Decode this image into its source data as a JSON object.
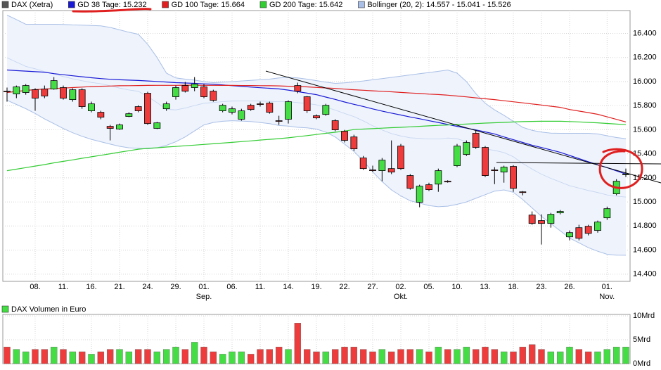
{
  "chart_data": [
    {
      "type": "candlestick",
      "name": "DAX (Xetra)",
      "color": "#000000",
      "legend_color": "#555555",
      "up_color": "#44dd44",
      "down_color": "#ee3b3b",
      "categories": [
        null,
        null,
        null,
        "08.",
        null,
        null,
        "11.",
        null,
        null,
        "16.",
        null,
        null,
        "21.",
        null,
        null,
        "24.",
        null,
        null,
        "29.",
        null,
        null,
        "01.",
        null,
        null,
        "06.",
        null,
        null,
        "11.",
        null,
        null,
        "14.",
        null,
        null,
        "19.",
        null,
        null,
        "22.",
        null,
        null,
        "27.",
        null,
        null,
        "02.",
        null,
        null,
        "05.",
        null,
        null,
        "10.",
        null,
        null,
        "13.",
        null,
        null,
        "18.",
        null,
        null,
        "23.",
        null,
        null,
        "26.",
        null,
        null,
        null,
        "01.",
        null,
        null
      ],
      "month_labels": [
        null,
        null,
        null,
        null,
        null,
        null,
        null,
        null,
        null,
        null,
        null,
        null,
        null,
        null,
        null,
        null,
        null,
        null,
        null,
        null,
        null,
        "Sep.",
        null,
        null,
        null,
        null,
        null,
        null,
        null,
        null,
        null,
        null,
        null,
        null,
        null,
        null,
        null,
        null,
        null,
        null,
        null,
        null,
        "Okt.",
        null,
        null,
        null,
        null,
        null,
        null,
        null,
        null,
        null,
        null,
        null,
        null,
        null,
        null,
        null,
        null,
        null,
        null,
        null,
        null,
        null,
        "Nov.",
        null,
        null
      ],
      "open": [
        15920,
        15897,
        15909,
        15932,
        15938,
        15938,
        15950,
        15850,
        15932,
        15757,
        15745,
        15628,
        15605,
        15710,
        15792,
        15903,
        15611,
        15774,
        15874,
        15967,
        15950,
        15956,
        15920,
        15757,
        15745,
        15687,
        15803,
        15815,
        15821,
        15675,
        15687,
        15967,
        15874,
        15716,
        15727,
        15675,
        15587,
        15540,
        15365,
        15266,
        15260,
        15277,
        15464,
        15219,
        14997,
        15143,
        15148,
        15172,
        15301,
        15394,
        15570,
        15453,
        15266,
        15248,
        15295,
        15084,
        14891,
        14845,
        14821,
        14909,
        14710,
        14786,
        14798,
        14763,
        14868,
        15067,
        15231
      ],
      "high": [
        15950,
        15967,
        15979,
        15944,
        15967,
        16037,
        15967,
        15944,
        15944,
        15833,
        15757,
        15640,
        15651,
        15745,
        15803,
        15915,
        15665,
        15833,
        15967,
        15997,
        16037,
        15979,
        15932,
        15815,
        15792,
        15774,
        15815,
        15833,
        15833,
        15716,
        15844,
        15991,
        15880,
        15727,
        15815,
        15687,
        15599,
        15558,
        15382,
        15301,
        15365,
        15511,
        15482,
        15231,
        15143,
        15160,
        15277,
        15180,
        15482,
        15511,
        15599,
        15464,
        15289,
        15301,
        15306,
        15090,
        14921,
        14897,
        14909,
        14933,
        14763,
        14810,
        14810,
        14845,
        14961,
        15189,
        15277
      ],
      "low": [
        15833,
        15862,
        15891,
        15757,
        15862,
        15932,
        15850,
        15833,
        15774,
        15745,
        15687,
        15511,
        15599,
        15704,
        15745,
        15640,
        15605,
        15757,
        15850,
        15909,
        15920,
        15862,
        15833,
        15745,
        15727,
        15675,
        15757,
        15792,
        15733,
        15640,
        15651,
        15903,
        15740,
        15687,
        15716,
        15587,
        15494,
        15423,
        15266,
        15248,
        15172,
        15231,
        15266,
        15102,
        14956,
        15090,
        15084,
        15160,
        15289,
        15382,
        15441,
        15207,
        15148,
        15160,
        15084,
        15055,
        14810,
        14646,
        14786,
        14897,
        14681,
        14681,
        14722,
        14745,
        14851,
        15055,
        15207
      ],
      "close": [
        15915,
        15956,
        15967,
        15862,
        15880,
        16008,
        15862,
        15932,
        15792,
        15815,
        15704,
        15611,
        15640,
        15733,
        15757,
        15651,
        15657,
        15815,
        15950,
        15920,
        15979,
        15874,
        15844,
        15803,
        15774,
        15757,
        15768,
        15810,
        15745,
        15670,
        15833,
        15920,
        15757,
        15698,
        15803,
        15599,
        15511,
        15441,
        15277,
        15260,
        15347,
        15248,
        15277,
        15113,
        15131,
        15102,
        15260,
        15166,
        15464,
        15494,
        15453,
        15219,
        15260,
        15289,
        15113,
        15078,
        14821,
        14821,
        14897,
        14921,
        14745,
        14698,
        14739,
        14833,
        14944,
        15172,
        15232
      ],
      "lines": [
        {
          "name": "GD 38 Tage: 15.232",
          "color": "#1a1ad6",
          "values": [
            16096,
            16091,
            16087,
            16082,
            16078,
            16066,
            16057,
            16048,
            16040,
            16032,
            16025,
            16019,
            16015,
            16012,
            16009,
            16005,
            16001,
            15996,
            15991,
            15988,
            15985,
            15981,
            15978,
            15972,
            15966,
            15960,
            15954,
            15949,
            15944,
            15939,
            15929,
            15916,
            15904,
            15891,
            15871,
            15852,
            15830,
            15811,
            15793,
            15773,
            15755,
            15738,
            15722,
            15706,
            15691,
            15675,
            15660,
            15644,
            15628,
            15613,
            15598,
            15582,
            15565,
            15540,
            15517,
            15494,
            15471,
            15452,
            15432,
            15412,
            15386,
            15360,
            15334,
            15309,
            15285,
            15258,
            15232
          ]
        },
        {
          "name": "GD 100 Tage: 15.664",
          "color": "#e02020",
          "values": [
            15909,
            15918,
            15926,
            15933,
            15938,
            15942,
            15946,
            15950,
            15954,
            15958,
            15961,
            15963,
            15965,
            15966,
            15967,
            15968,
            15969,
            15969,
            15969,
            15970,
            15970,
            15969,
            15969,
            15968,
            15968,
            15967,
            15967,
            15966,
            15965,
            15964,
            15961,
            15959,
            15956,
            15951,
            15947,
            15943,
            15937,
            15932,
            15928,
            15923,
            15919,
            15915,
            15910,
            15905,
            15901,
            15896,
            15892,
            15887,
            15880,
            15873,
            15865,
            15857,
            15850,
            15841,
            15832,
            15823,
            15814,
            15805,
            15795,
            15786,
            15768,
            15755,
            15742,
            15728,
            15707,
            15686,
            15664
          ]
        },
        {
          "name": "GD 200 Tage: 15.642",
          "color": "#33cc33",
          "values": [
            15260,
            15272,
            15285,
            15298,
            15310,
            15325,
            15337,
            15349,
            15363,
            15375,
            15387,
            15400,
            15413,
            15425,
            15438,
            15445,
            15450,
            15456,
            15461,
            15467,
            15472,
            15478,
            15483,
            15489,
            15495,
            15501,
            15507,
            15514,
            15520,
            15526,
            15533,
            15542,
            15551,
            15560,
            15570,
            15579,
            15589,
            15601,
            15605,
            15609,
            15613,
            15617,
            15620,
            15624,
            15628,
            15632,
            15636,
            15639,
            15643,
            15647,
            15651,
            15655,
            15658,
            15661,
            15664,
            15667,
            15669,
            15670,
            15670,
            15670,
            15668,
            15665,
            15661,
            15657,
            15652,
            15647,
            15642
          ]
        }
      ],
      "band": {
        "name": "Bollinger (20, 2): 14.557 - 15.041 - 15.526",
        "color": "#a9bfe6",
        "fill": "#eef3fc",
        "upper": [
          16552,
          16515,
          16476,
          16476,
          16476,
          16476,
          16474,
          16471,
          16469,
          16466,
          16463,
          16450,
          16430,
          16410,
          16393,
          16310,
          16200,
          16070,
          16030,
          16020,
          16012,
          16000,
          15991,
          15995,
          16000,
          16005,
          16010,
          16015,
          16020,
          16030,
          16035,
          16030,
          16020,
          16008,
          15995,
          15985,
          15990,
          15997,
          16005,
          16015,
          16025,
          16035,
          16045,
          16055,
          16065,
          16075,
          16085,
          16096,
          16070,
          16000,
          15900,
          15820,
          15765,
          15720,
          15670,
          15620,
          15595,
          15580,
          15572,
          15570,
          15570,
          15570,
          15570,
          15565,
          15550,
          15535,
          15526
        ],
        "middle": [
          16198,
          16162,
          16126,
          16106,
          16083,
          16063,
          16042,
          16023,
          16007,
          15993,
          15982,
          15965,
          15946,
          15930,
          15919,
          15876,
          15825,
          15770,
          15765,
          15780,
          15801,
          15820,
          15826,
          15833,
          15838,
          15839,
          15839,
          15838,
          15835,
          15833,
          15833,
          15825,
          15818,
          15807,
          15788,
          15763,
          15735,
          15709,
          15673,
          15633,
          15598,
          15568,
          15548,
          15533,
          15528,
          15523,
          15523,
          15531,
          15525,
          15500,
          15465,
          15440,
          15428,
          15410,
          15375,
          15320,
          15273,
          15230,
          15196,
          15165,
          15135,
          15115,
          15095,
          15078,
          15058,
          15047,
          15041
        ],
        "lower": [
          15844,
          15810,
          15775,
          15735,
          15690,
          15650,
          15610,
          15575,
          15545,
          15520,
          15500,
          15480,
          15462,
          15450,
          15445,
          15441,
          15450,
          15470,
          15500,
          15540,
          15590,
          15640,
          15660,
          15670,
          15675,
          15672,
          15668,
          15660,
          15650,
          15635,
          15630,
          15620,
          15615,
          15605,
          15580,
          15540,
          15480,
          15420,
          15340,
          15250,
          15170,
          15100,
          15050,
          15010,
          14990,
          14970,
          14960,
          14965,
          14980,
          15000,
          15030,
          15060,
          15090,
          15100,
          15080,
          15020,
          14950,
          14880,
          14820,
          14760,
          14700,
          14660,
          14620,
          14590,
          14565,
          14558,
          14557
        ]
      },
      "ylim": [
        14340,
        16590
      ],
      "yticks": [
        {
          "value": 14400,
          "label": "14.400"
        },
        {
          "value": 14600,
          "label": "14.600"
        },
        {
          "value": 14800,
          "label": "14.800"
        },
        {
          "value": 15000,
          "label": "15.000"
        },
        {
          "value": 15200,
          "label": "15.200"
        },
        {
          "value": 15400,
          "label": "15.400"
        },
        {
          "value": 15600,
          "label": "15.600"
        },
        {
          "value": 15800,
          "label": "15.800"
        },
        {
          "value": 16000,
          "label": "16.000"
        },
        {
          "value": 16200,
          "label": "16.200"
        },
        {
          "value": 16400,
          "label": "16.400"
        }
      ],
      "grid": true
    },
    {
      "type": "bar",
      "name": "DAX Volumen in Euro",
      "legend_color": "#44dd44",
      "values": [
        3.5,
        3,
        2.5,
        3,
        3,
        3.5,
        3,
        2.5,
        2.5,
        2,
        2.5,
        3,
        3,
        2.5,
        3,
        3,
        2.5,
        3,
        3.5,
        3,
        4.5,
        3.5,
        2.5,
        2,
        2.5,
        2.5,
        2,
        3,
        3,
        3.5,
        3,
        8.5,
        3,
        2.5,
        2.5,
        3,
        3.5,
        3.5,
        3,
        2.5,
        3,
        2.5,
        3,
        3,
        3,
        2.5,
        3.5,
        3,
        3,
        3.5,
        3,
        3.5,
        3,
        2.5,
        2.5,
        3.5,
        4,
        3,
        2.5,
        2.5,
        3.5,
        3,
        2.5,
        2.5,
        3,
        3.5,
        3.5
      ],
      "ylim": [
        0,
        10.3
      ],
      "yticks": [
        {
          "value": 0,
          "label": "0Mrd"
        },
        {
          "value": 5,
          "label": "5Mrd"
        },
        {
          "value": 10,
          "label": "10Mrd"
        }
      ],
      "grid": true
    }
  ]
}
